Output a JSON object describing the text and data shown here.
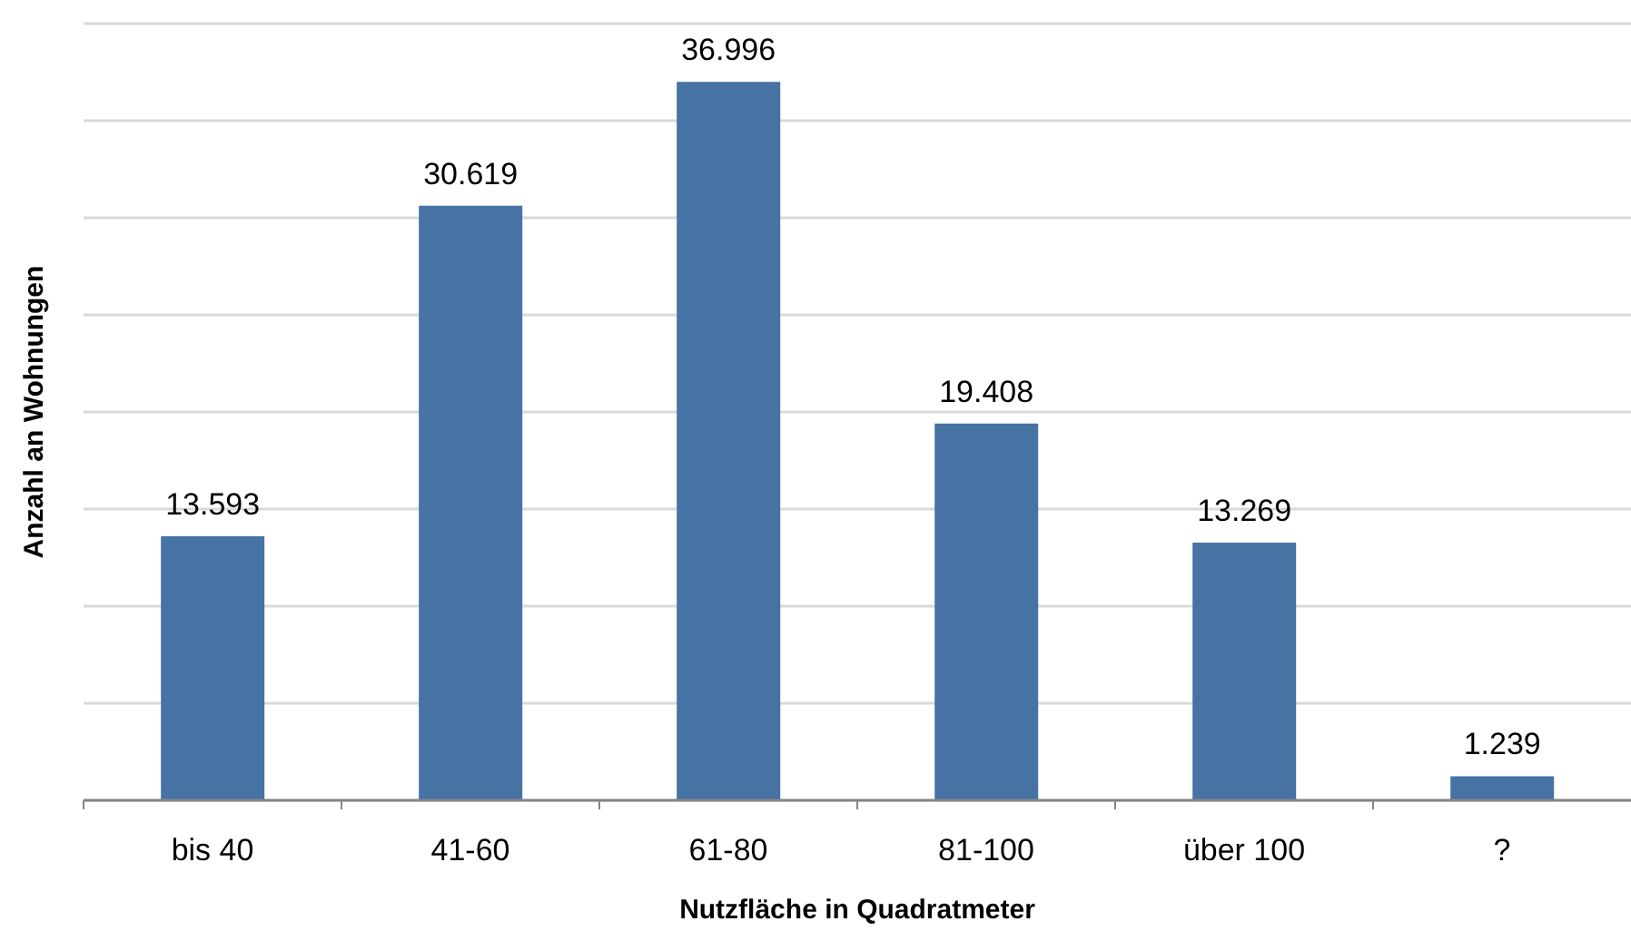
{
  "chart_data": {
    "type": "bar",
    "xlabel": "Nutzfläche in Quadratmeter",
    "ylabel": "Anzahl an Wohnungen",
    "categories": [
      "bis 40",
      "41-60",
      "61-80",
      "81-100",
      "über 100",
      "?"
    ],
    "values": [
      13593,
      30619,
      36996,
      19408,
      13269,
      1239
    ],
    "color": "#4672a4",
    "value_labels": [
      "13.593",
      "30.619",
      "36.996",
      "19.408",
      "13.269",
      "1.239"
    ],
    "ylim": [
      0,
      40000
    ],
    "yticks": [
      {
        "value": 0,
        "label": null
      },
      {
        "value": 5000,
        "label": null
      },
      {
        "value": 10000,
        "label": null
      },
      {
        "value": 15000,
        "label": null
      },
      {
        "value": 20000,
        "label": null
      },
      {
        "value": 25000,
        "label": null
      },
      {
        "value": 30000,
        "label": null
      },
      {
        "value": 35000,
        "label": null
      },
      {
        "value": 40000,
        "label": null
      }
    ],
    "grid": "y",
    "tick_labels": "x"
  }
}
